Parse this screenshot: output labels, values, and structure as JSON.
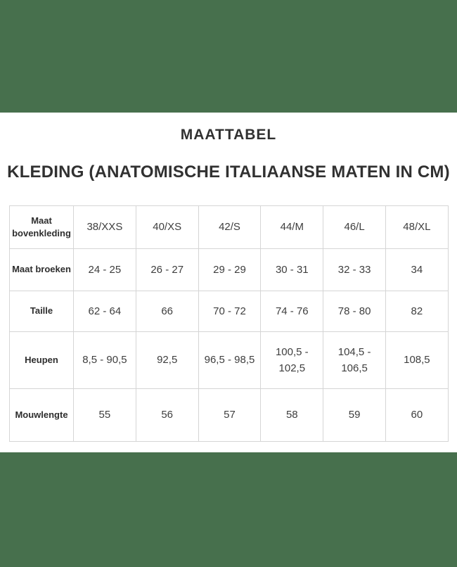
{
  "colors": {
    "band_green": "#47704D",
    "title_text": "#313131",
    "table_text": "#3e3e3e",
    "table_border": "#d5d5d5",
    "background": "#ffffff"
  },
  "titles": {
    "title": "MAATTABEL",
    "subtitle": "KLEDING (ANATOMISCHE ITALIAANSE MATEN IN CM)"
  },
  "size_table": {
    "rows": [
      {
        "label": "Maat bovenkleding",
        "values": [
          "38/XXS",
          "40/XS",
          "42/S",
          "44/M",
          "46/L",
          "48/XL"
        ]
      },
      {
        "label": "Maat broeken",
        "values": [
          "24 - 25",
          "26 - 27",
          "29 - 29",
          "30 - 31",
          "32 - 33",
          "34"
        ]
      },
      {
        "label": "Taille",
        "values": [
          "62 - 64",
          "66",
          "70 - 72",
          "74 - 76",
          "78 - 80",
          "82"
        ]
      },
      {
        "label": "Heupen",
        "values": [
          "8,5 - 90,5",
          "92,5",
          "96,5 - 98,5",
          "100,5 - 102,5",
          "104,5 - 106,5",
          "108,5"
        ]
      },
      {
        "label": "Mouwlengte",
        "values": [
          "55",
          "56",
          "57",
          "58",
          "59",
          "60"
        ]
      }
    ]
  }
}
